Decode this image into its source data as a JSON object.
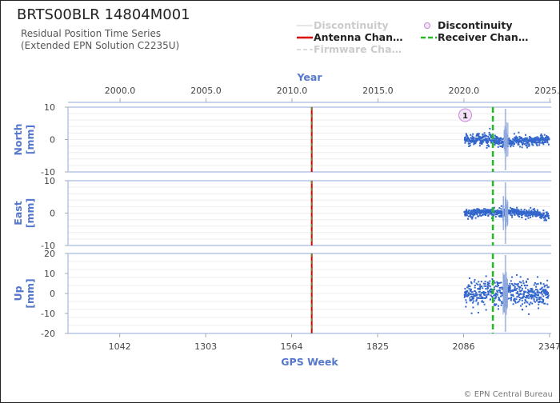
{
  "header": {
    "title": "BRTS00BLR 14804M001",
    "subtitle_line1": "Residual Position Time Series",
    "subtitle_line2": "(Extended EPN Solution C2235U)"
  },
  "legend": {
    "items": [
      {
        "label": "Discontinuity",
        "style": "thin-line",
        "color": "#dddddd",
        "dimmed": true
      },
      {
        "label": "Discontinuity",
        "style": "circle",
        "color": "#cc88dd",
        "dimmed": false
      },
      {
        "label": "Antenna Chan…",
        "style": "solid-line",
        "color": "#dd0000",
        "dimmed": false
      },
      {
        "label": "Receiver Chan…",
        "style": "dashed-line",
        "color": "#22bb22",
        "dimmed": false
      },
      {
        "label": "Firmware Cha…",
        "style": "dashed-line",
        "color": "#dddddd",
        "dimmed": true
      }
    ]
  },
  "footer": {
    "credit": "© EPN Central Bureau"
  },
  "colors": {
    "points": "#3366cc",
    "axis_label": "#5577cc",
    "antenna": "#dd0000",
    "receiver": "#22bb22",
    "discontinuity": "#aabbdd"
  },
  "chart_data": {
    "type": "scatter",
    "x_axis_bottom": {
      "label": "GPS Week",
      "ticks": [
        "1042",
        "1303",
        "1564",
        "1825",
        "2086",
        "2347"
      ],
      "tick_values": [
        1042,
        1303,
        1564,
        1825,
        2086,
        2347
      ],
      "range": [
        885,
        2352
      ]
    },
    "x_axis_top": {
      "label": "Year",
      "ticks": [
        "2000.0",
        "2005.0",
        "2010.0",
        "2015.0",
        "2020.0",
        "2025.0"
      ],
      "tick_weeks": [
        1043,
        1304,
        1565,
        1826,
        2087,
        2348
      ]
    },
    "panels": [
      {
        "name": "North",
        "ylabel": "North\n[mm]",
        "ylabel_lines": [
          "North",
          "[mm]"
        ],
        "ylim": [
          -10,
          10
        ],
        "yticks": [
          "10",
          "0",
          "-10"
        ],
        "ytick_values": [
          10,
          0,
          -10
        ],
        "noise_mm": 0.8,
        "offset_mm": 0.0
      },
      {
        "name": "East",
        "ylabel": "East\n[mm]",
        "ylabel_lines": [
          "East",
          "[mm]"
        ],
        "ylim": [
          -10,
          10
        ],
        "yticks": [
          "10",
          "0",
          "-10"
        ],
        "ytick_values": [
          10,
          0,
          -10
        ],
        "noise_mm": 0.6,
        "offset_mm": 0.0
      },
      {
        "name": "Up",
        "ylabel": "Up\n[mm]",
        "ylabel_lines": [
          "Up",
          "[mm]"
        ],
        "ylim": [
          -20,
          20
        ],
        "yticks": [
          "20",
          "10",
          "0",
          "-10",
          "-20"
        ],
        "ytick_values": [
          20,
          10,
          0,
          -10,
          -20
        ],
        "noise_mm": 3.2,
        "offset_mm": 0.0
      }
    ],
    "series_span_weeks": [
      2089,
      2345
    ],
    "events": {
      "antenna_change_week": 1625,
      "receiver_change_week": 2175,
      "discontinuity_weeks": [
        2212,
        2214
      ],
      "discontinuity_markers": [
        {
          "label": "1",
          "week": 2091
        }
      ]
    }
  }
}
